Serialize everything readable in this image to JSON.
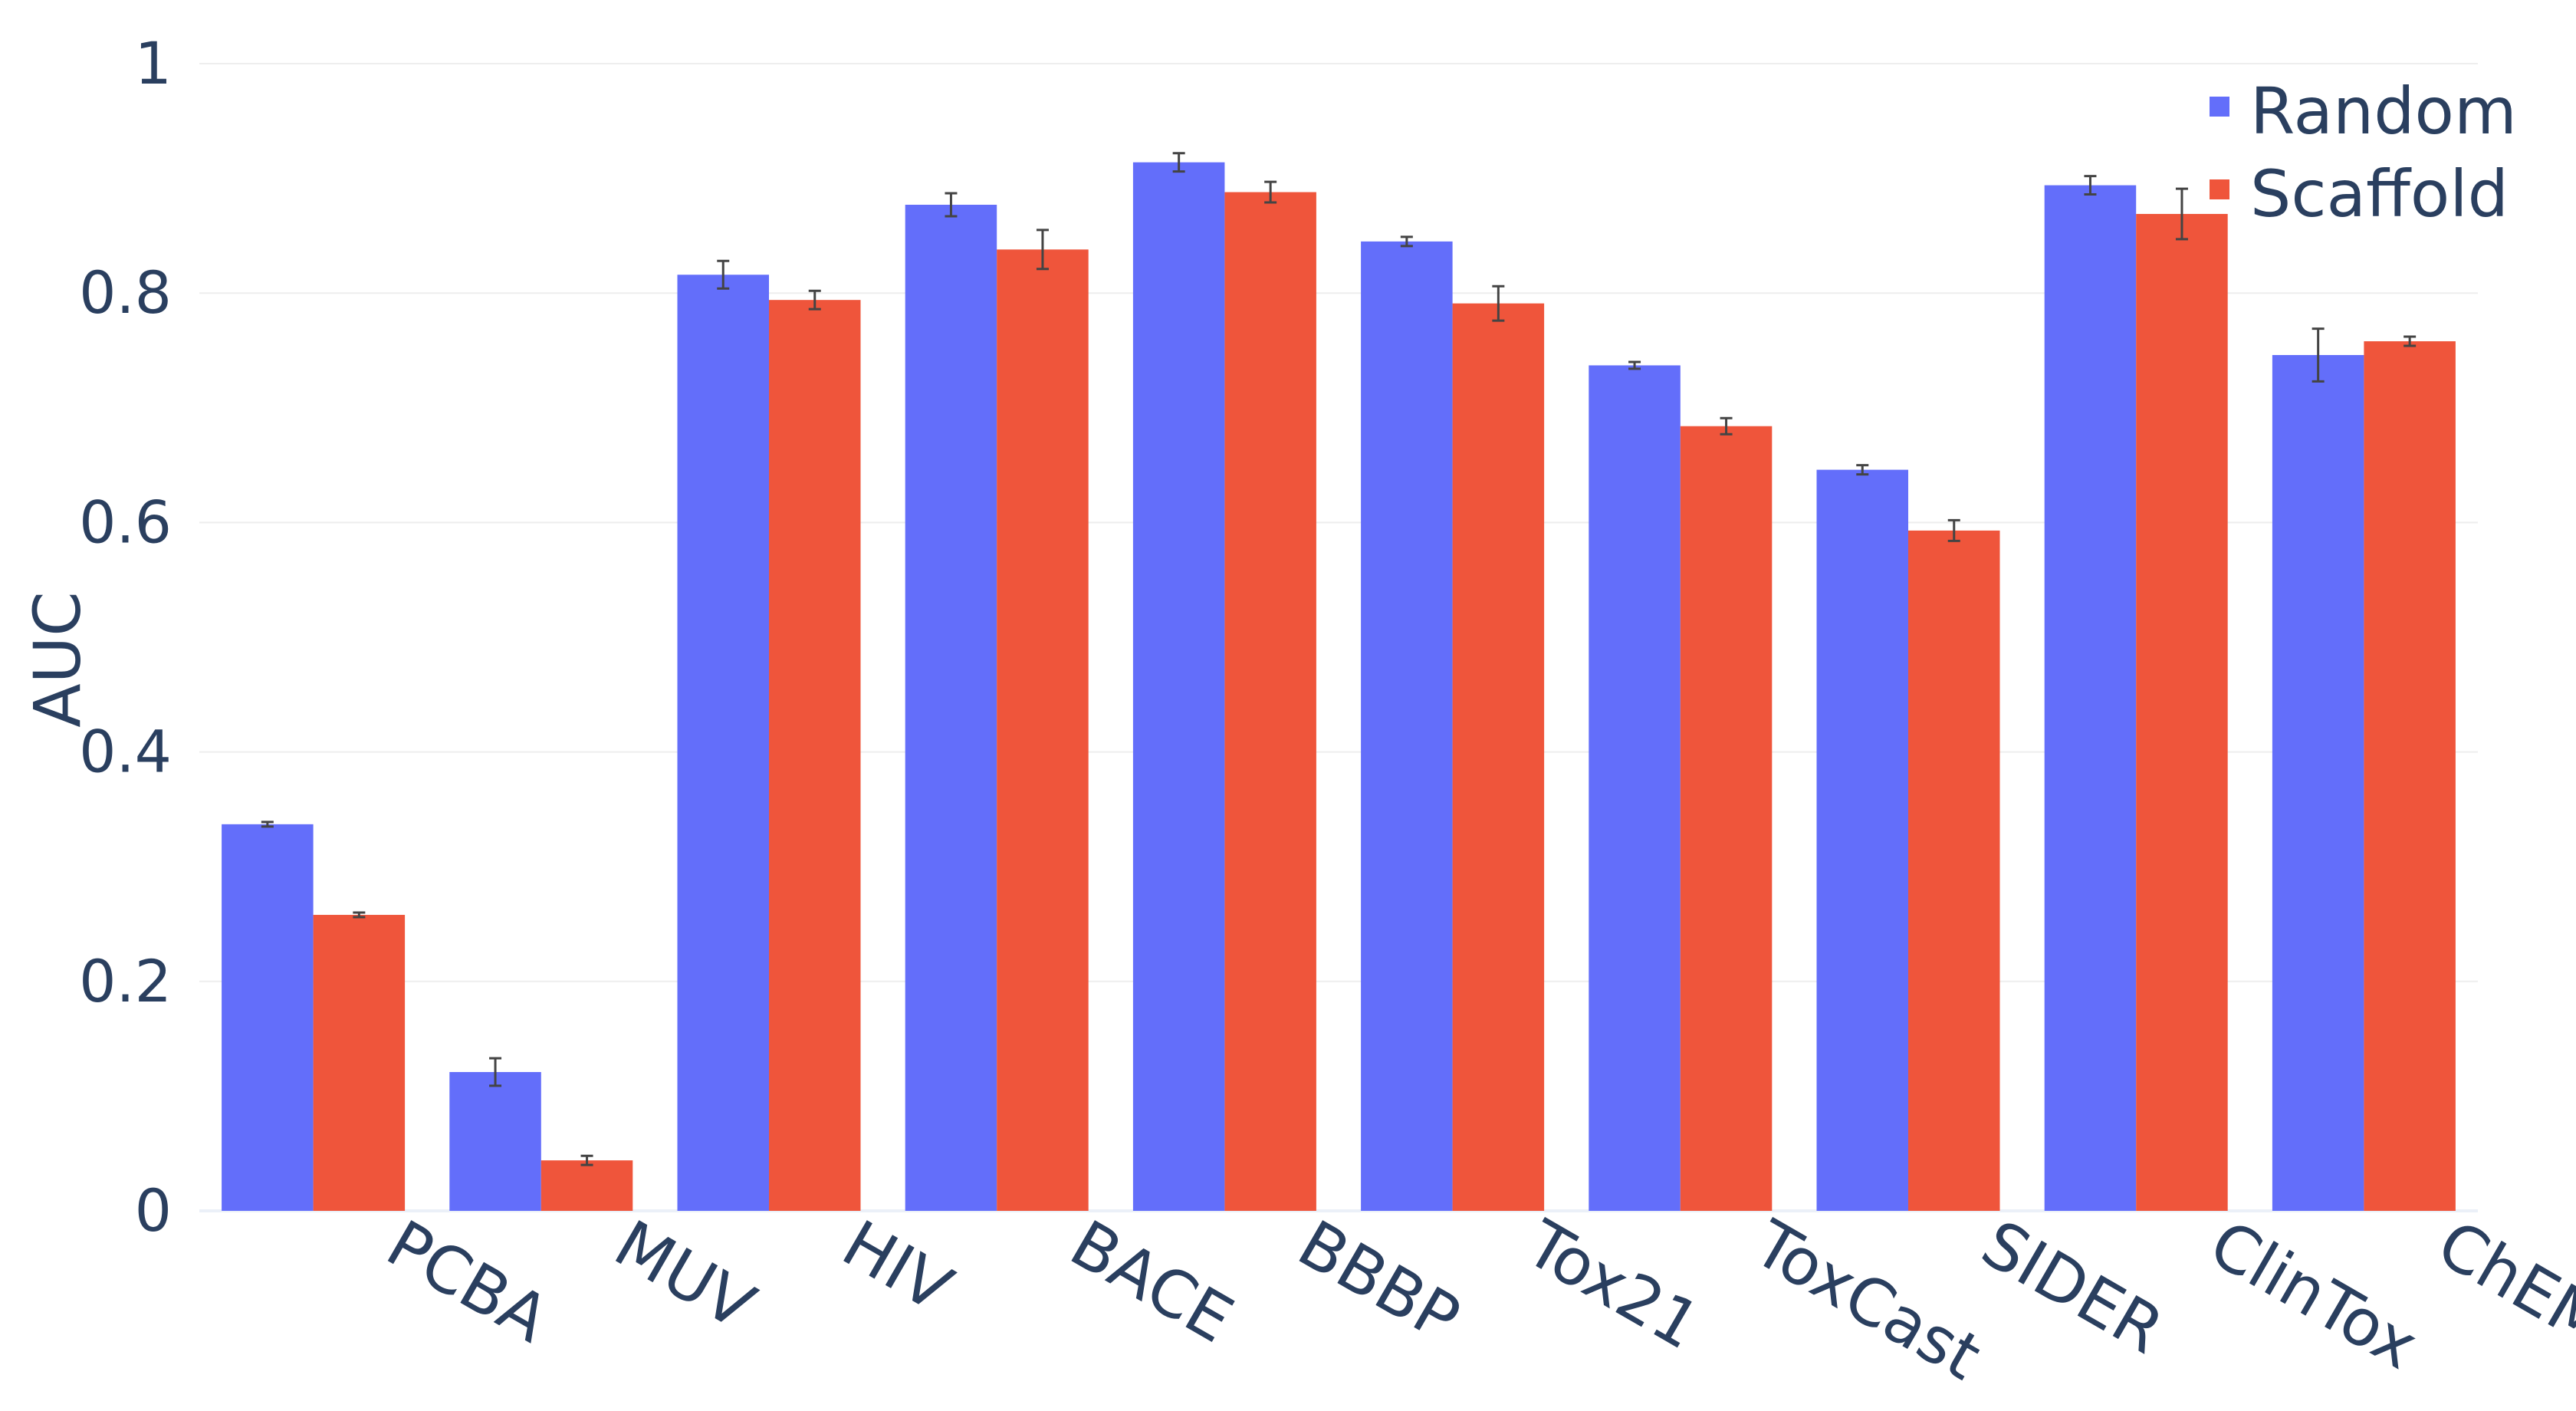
{
  "chart_data": {
    "type": "bar",
    "ylabel": "AUC",
    "xlabel": "",
    "ylim": [
      0,
      1
    ],
    "yticks": [
      0,
      0.2,
      0.4,
      0.6,
      0.8,
      1
    ],
    "ytick_labels": [
      "0",
      "0.2",
      "0.4",
      "0.6",
      "0.8",
      "1"
    ],
    "grid": true,
    "legend_position": "top-right",
    "categories": [
      "PCBA",
      "MUV",
      "HIV",
      "BACE",
      "BBBP",
      "Tox21",
      "ToxCast",
      "SIDER",
      "ClinTox",
      "ChEMBL"
    ],
    "series": [
      {
        "name": "Random",
        "color": "#636efa",
        "values": [
          0.337,
          0.121,
          0.816,
          0.877,
          0.914,
          0.845,
          0.737,
          0.646,
          0.894,
          0.746
        ],
        "error": [
          0.002,
          0.012,
          0.012,
          0.01,
          0.008,
          0.004,
          0.003,
          0.004,
          0.008,
          0.023
        ]
      },
      {
        "name": "Scaffold",
        "color": "#ef553b",
        "values": [
          0.258,
          0.044,
          0.794,
          0.838,
          0.888,
          0.791,
          0.684,
          0.593,
          0.869,
          0.758
        ],
        "error": [
          0.002,
          0.004,
          0.008,
          0.017,
          0.009,
          0.015,
          0.007,
          0.009,
          0.022,
          0.004
        ]
      }
    ]
  }
}
